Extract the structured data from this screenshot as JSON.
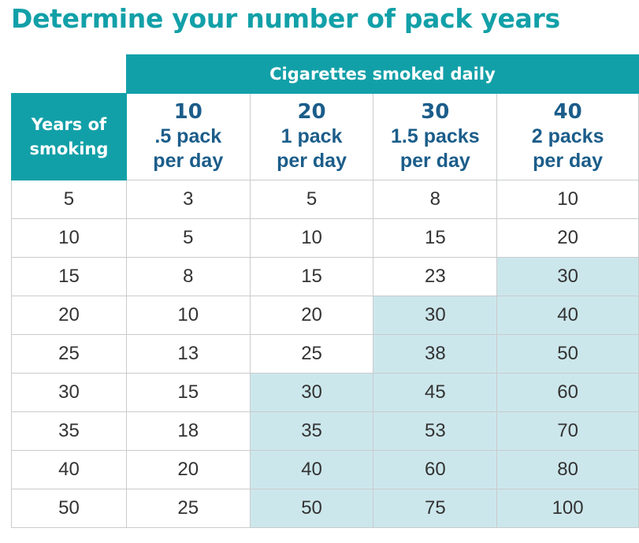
{
  "title": "Determine your number of pack years",
  "table": {
    "group_header": "Cigarettes smoked daily",
    "row_header": [
      "Years of",
      "smoking"
    ],
    "columns": [
      {
        "cigarettes": "10",
        "packs": ".5 pack",
        "per_day": "per day"
      },
      {
        "cigarettes": "20",
        "packs": "1 pack",
        "per_day": "per day"
      },
      {
        "cigarettes": "30",
        "packs": "1.5 packs",
        "per_day": "per day"
      },
      {
        "cigarettes": "40",
        "packs": "2 packs",
        "per_day": "per day"
      }
    ],
    "rows": [
      {
        "years": "5",
        "values": [
          "3",
          "5",
          "8",
          "10"
        ]
      },
      {
        "years": "10",
        "values": [
          "5",
          "10",
          "15",
          "20"
        ]
      },
      {
        "years": "15",
        "values": [
          "8",
          "15",
          "23",
          "30"
        ]
      },
      {
        "years": "20",
        "values": [
          "10",
          "20",
          "30",
          "40"
        ]
      },
      {
        "years": "25",
        "values": [
          "13",
          "25",
          "38",
          "50"
        ]
      },
      {
        "years": "30",
        "values": [
          "15",
          "30",
          "45",
          "60"
        ]
      },
      {
        "years": "35",
        "values": [
          "18",
          "35",
          "53",
          "70"
        ]
      },
      {
        "years": "40",
        "values": [
          "20",
          "40",
          "60",
          "80"
        ]
      },
      {
        "years": "50",
        "values": [
          "25",
          "50",
          "75",
          "100"
        ]
      }
    ],
    "highlight_threshold": 30
  },
  "colors": {
    "brand_teal": "#12a0a8",
    "header_text_blue": "#1b5d8a",
    "highlight_fill": "#cce7ec",
    "grid_line": "#c9cbcd"
  }
}
